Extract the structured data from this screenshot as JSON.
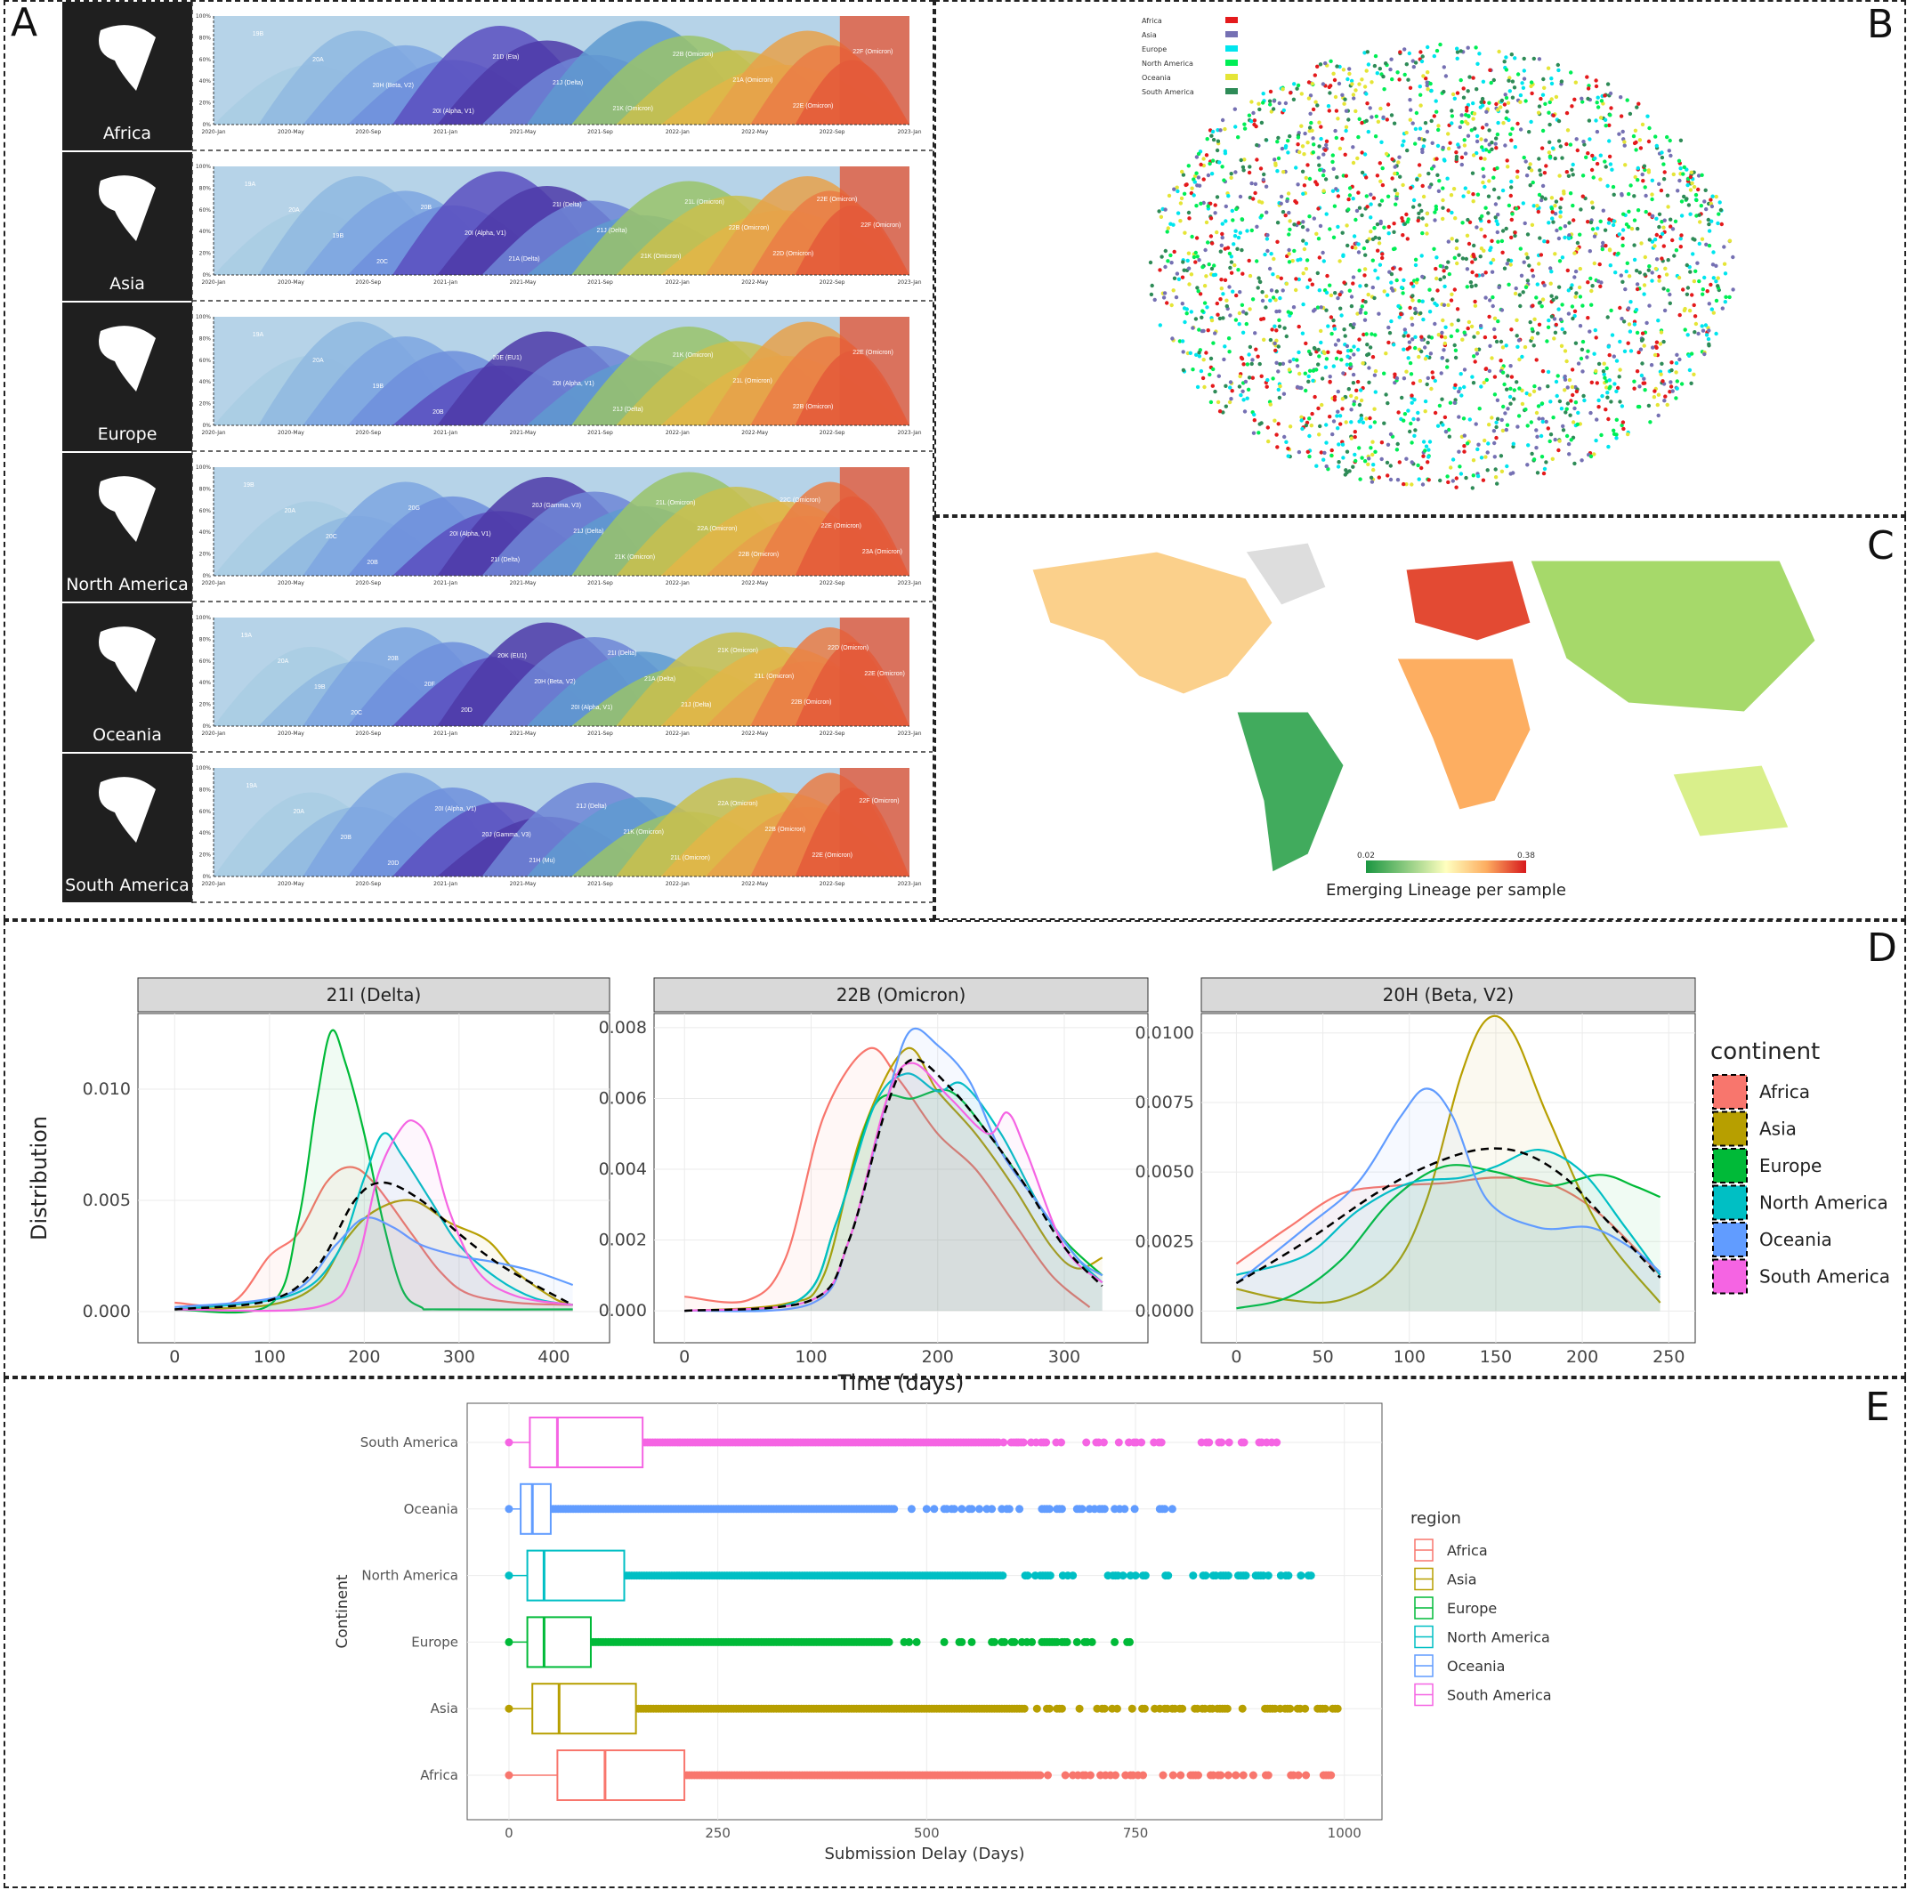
{
  "panels": {
    "A": "A",
    "B": "B",
    "C": "C",
    "D": "D",
    "E": "E"
  },
  "colors": {
    "Africa": "#f8766d",
    "Asia": "#b79f00",
    "Europe": "#00ba38",
    "North America": "#00bfc4",
    "Oceania": "#619cff",
    "South America": "#f564e3",
    "dark_panel": "#1f1f1f"
  },
  "panelA": {
    "continents": [
      {
        "name": "Africa",
        "icon": "africa-silhouette-icon",
        "labels": [
          "19B",
          "20A",
          "20H (Beta, V2)",
          "20I (Alpha, V1)",
          "21D (Eta)",
          "21J (Delta)",
          "21K (Omicron)",
          "22B (Omicron)",
          "21A (Omicron)",
          "22E (Omicron)",
          "22F (Omicron)"
        ]
      },
      {
        "name": "Asia",
        "icon": "asia-silhouette-icon",
        "labels": [
          "19A",
          "20A",
          "19B",
          "20C",
          "20B",
          "20I (Alpha, V1)",
          "21A (Delta)",
          "21I (Delta)",
          "21J (Delta)",
          "21K (Omicron)",
          "21L (Omicron)",
          "22B (Omicron)",
          "22D (Omicron)",
          "22E (Omicron)",
          "22F (Omicron)"
        ]
      },
      {
        "name": "Europe",
        "icon": "europe-silhouette-icon",
        "labels": [
          "19A",
          "20A",
          "19B",
          "20B",
          "20E (EU1)",
          "20I (Alpha, V1)",
          "21J (Delta)",
          "21K (Omicron)",
          "21L (Omicron)",
          "22B (Omicron)",
          "22E (Omicron)"
        ]
      },
      {
        "name": "North America",
        "icon": "north-america-silhouette-icon",
        "labels": [
          "19B",
          "20A",
          "20C",
          "20B",
          "20G",
          "20I (Alpha, V1)",
          "21I (Delta)",
          "20J (Gamma, V3)",
          "21J (Delta)",
          "21K (Omicron)",
          "21L (Omicron)",
          "22A (Omicron)",
          "22B (Omicron)",
          "22C (Omicron)",
          "22E (Omicron)",
          "23A (Omicron)"
        ]
      },
      {
        "name": "Oceania",
        "icon": "oceania-silhouette-icon",
        "labels": [
          "19A",
          "20A",
          "19B",
          "20C",
          "20B",
          "20F",
          "20D",
          "20K (EU1)",
          "20H (Beta, V2)",
          "20I (Alpha, V1)",
          "21I (Delta)",
          "21A (Delta)",
          "21J (Delta)",
          "21K (Omicron)",
          "21L (Omicron)",
          "22B (Omicron)",
          "22D (Omicron)",
          "22E (Omicron)"
        ]
      },
      {
        "name": "South America",
        "icon": "south-america-silhouette-icon",
        "labels": [
          "19A",
          "20A",
          "20B",
          "20D",
          "20I (Alpha, V1)",
          "20J (Gamma, V3)",
          "21H (Mu)",
          "21J (Delta)",
          "21K (Omicron)",
          "21L (Omicron)",
          "22A (Omicron)",
          "22B (Omicron)",
          "22E (Omicron)",
          "22F (Omicron)"
        ]
      }
    ],
    "xticks": [
      "2020-Jan",
      "2020-May",
      "2020-Sep",
      "2021-Jan",
      "2021-May",
      "2021-Sep",
      "2022-Jan",
      "2022-May",
      "2022-Sep",
      "2023-Jan"
    ],
    "yticks": [
      "0%",
      "20%",
      "40%",
      "60%",
      "80%",
      "100%"
    ]
  },
  "panelB": {
    "legend": [
      "Africa",
      "Asia",
      "Europe",
      "North America",
      "Oceania",
      "South America"
    ],
    "legend_colors": [
      "#e41a1c",
      "#7570b3",
      "#00e5ee",
      "#00ee55",
      "#e5e537",
      "#2e8b57"
    ]
  },
  "panelC": {
    "colorbar_min": "0.02",
    "colorbar_max": "0.38",
    "colorbar_title": "Emerging Lineage per sample"
  },
  "chart_data": [
    {
      "type": "area",
      "panel": "D",
      "title": "21I (Delta)",
      "ylabel": "Distribution",
      "xticks": [
        "0",
        "100",
        "200",
        "300",
        "400"
      ],
      "yticks": [
        "0.000",
        "0.005",
        "0.010"
      ],
      "xlim": [
        -20,
        440
      ],
      "ylim": [
        -0.0006,
        0.0134
      ],
      "series": [
        {
          "name": "Africa",
          "x": [
            0,
            60,
            100,
            130,
            160,
            185,
            210,
            250,
            280,
            310,
            360,
            420
          ],
          "y": [
            0.0004,
            0.0004,
            0.0025,
            0.0035,
            0.0058,
            0.0065,
            0.0058,
            0.0035,
            0.0018,
            0.0008,
            0.0004,
            0.0003
          ]
        },
        {
          "name": "Asia",
          "x": [
            0,
            100,
            150,
            180,
            210,
            250,
            290,
            330,
            360,
            400,
            420
          ],
          "y": [
            0.0001,
            0.0003,
            0.0012,
            0.0032,
            0.0045,
            0.005,
            0.004,
            0.0032,
            0.0018,
            0.0006,
            0.0003
          ]
        },
        {
          "name": "Europe",
          "x": [
            0,
            100,
            130,
            150,
            165,
            180,
            200,
            220,
            240,
            260,
            280,
            420
          ],
          "y": [
            0.0001,
            0.0003,
            0.004,
            0.0095,
            0.0126,
            0.0112,
            0.008,
            0.004,
            0.001,
            0.0002,
            0.0001,
            0.0001
          ]
        },
        {
          "name": "North America",
          "x": [
            0,
            120,
            170,
            200,
            220,
            240,
            270,
            300,
            340,
            380,
            420
          ],
          "y": [
            0.0001,
            0.0007,
            0.0025,
            0.006,
            0.008,
            0.007,
            0.005,
            0.003,
            0.0015,
            0.0006,
            0.0003
          ]
        },
        {
          "name": "Oceania",
          "x": [
            0,
            120,
            170,
            200,
            230,
            260,
            300,
            340,
            380,
            420
          ],
          "y": [
            0.0002,
            0.0008,
            0.003,
            0.0042,
            0.0038,
            0.003,
            0.0025,
            0.0022,
            0.0018,
            0.0012
          ]
        },
        {
          "name": "South America",
          "x": [
            0,
            150,
            190,
            215,
            240,
            255,
            270,
            290,
            320,
            360,
            420
          ],
          "y": [
            0.0001,
            0.0002,
            0.002,
            0.0062,
            0.0083,
            0.0085,
            0.0075,
            0.0045,
            0.0018,
            0.0007,
            0.0003
          ]
        },
        {
          "name": "overall",
          "x": [
            0,
            100,
            150,
            190,
            220,
            260,
            300,
            340,
            380,
            420
          ],
          "y": [
            0.0001,
            0.0005,
            0.002,
            0.005,
            0.0058,
            0.005,
            0.0035,
            0.0022,
            0.0012,
            0.0003
          ]
        }
      ]
    },
    {
      "type": "area",
      "panel": "D",
      "title": "22B (Omicron)",
      "xlabel": "Time (days)",
      "xticks": [
        "0",
        "100",
        "200",
        "300"
      ],
      "yticks": [
        "0.000",
        "0.002",
        "0.004",
        "0.006",
        "0.008"
      ],
      "xlim": [
        -10,
        352
      ],
      "ylim": [
        -0.0004,
        0.0084
      ],
      "series": [
        {
          "name": "Africa",
          "x": [
            0,
            50,
            80,
            110,
            145,
            170,
            200,
            230,
            260,
            290,
            320
          ],
          "y": [
            0.0004,
            0.0003,
            0.0015,
            0.0055,
            0.0074,
            0.0065,
            0.005,
            0.004,
            0.0025,
            0.001,
            0.0001
          ]
        },
        {
          "name": "Asia",
          "x": [
            0,
            80,
            110,
            140,
            175,
            200,
            230,
            260,
            290,
            310,
            330
          ],
          "y": [
            0.0,
            0.0002,
            0.001,
            0.005,
            0.0074,
            0.0062,
            0.005,
            0.0035,
            0.0018,
            0.0012,
            0.0015
          ]
        },
        {
          "name": "Europe",
          "x": [
            0,
            90,
            120,
            150,
            180,
            210,
            240,
            270,
            300,
            330
          ],
          "y": [
            0.0,
            0.0003,
            0.0025,
            0.0058,
            0.006,
            0.0062,
            0.005,
            0.0035,
            0.002,
            0.001
          ]
        },
        {
          "name": "North America",
          "x": [
            0,
            90,
            120,
            150,
            175,
            200,
            220,
            250,
            280,
            310,
            330
          ],
          "y": [
            0.0,
            0.0003,
            0.0025,
            0.0058,
            0.0067,
            0.0062,
            0.0064,
            0.005,
            0.003,
            0.0015,
            0.0008
          ]
        },
        {
          "name": "Oceania",
          "x": [
            0,
            100,
            130,
            160,
            178,
            200,
            225,
            250,
            280,
            310,
            330
          ],
          "y": [
            0.0,
            0.0002,
            0.002,
            0.006,
            0.0079,
            0.0075,
            0.0065,
            0.0045,
            0.003,
            0.0015,
            0.001
          ]
        },
        {
          "name": "South America",
          "x": [
            0,
            100,
            130,
            160,
            180,
            210,
            240,
            255,
            270,
            300,
            330
          ],
          "y": [
            0.0,
            0.0003,
            0.002,
            0.006,
            0.007,
            0.006,
            0.005,
            0.0056,
            0.0045,
            0.0018,
            0.0008
          ]
        },
        {
          "name": "overall",
          "x": [
            0,
            100,
            130,
            160,
            180,
            210,
            240,
            270,
            300,
            330
          ],
          "y": [
            0.0,
            0.0003,
            0.002,
            0.0058,
            0.0071,
            0.0063,
            0.005,
            0.0035,
            0.0018,
            0.0007
          ]
        }
      ]
    },
    {
      "type": "area",
      "panel": "D",
      "title": "20H (Beta, V2)",
      "xticks": [
        "0",
        "50",
        "100",
        "150",
        "200",
        "250"
      ],
      "yticks": [
        "0.0000",
        "0.0025",
        "0.0050",
        "0.0075",
        "0.0100"
      ],
      "xlim": [
        -10,
        255
      ],
      "ylim": [
        -0.0005,
        0.0107
      ],
      "series": [
        {
          "name": "Africa",
          "x": [
            0,
            30,
            60,
            90,
            120,
            150,
            180,
            210,
            245
          ],
          "y": [
            0.0017,
            0.003,
            0.0042,
            0.0045,
            0.0046,
            0.0048,
            0.0046,
            0.0035,
            0.0013
          ]
        },
        {
          "name": "Asia",
          "x": [
            0,
            30,
            60,
            90,
            110,
            130,
            145,
            160,
            180,
            210,
            245
          ],
          "y": [
            0.0008,
            0.0004,
            0.0004,
            0.0015,
            0.004,
            0.0085,
            0.0105,
            0.01,
            0.007,
            0.003,
            0.0003
          ]
        },
        {
          "name": "Europe",
          "x": [
            0,
            30,
            60,
            90,
            120,
            150,
            180,
            210,
            230,
            245
          ],
          "y": [
            0.0001,
            0.0005,
            0.0018,
            0.004,
            0.0052,
            0.005,
            0.0045,
            0.0049,
            0.0045,
            0.0041
          ]
        },
        {
          "name": "North America",
          "x": [
            0,
            40,
            70,
            100,
            130,
            150,
            175,
            200,
            225,
            245
          ],
          "y": [
            0.0013,
            0.002,
            0.0036,
            0.0046,
            0.0048,
            0.0052,
            0.0058,
            0.005,
            0.003,
            0.0013
          ]
        },
        {
          "name": "Oceania",
          "x": [
            0,
            40,
            70,
            95,
            110,
            125,
            145,
            175,
            205,
            230,
            245
          ],
          "y": [
            0.001,
            0.003,
            0.0046,
            0.007,
            0.008,
            0.007,
            0.004,
            0.003,
            0.003,
            0.0022,
            0.0014
          ]
        },
        {
          "name": "overall",
          "x": [
            0,
            40,
            80,
            110,
            140,
            165,
            190,
            215,
            245
          ],
          "y": [
            0.001,
            0.0025,
            0.0042,
            0.0052,
            0.0058,
            0.0057,
            0.0048,
            0.0032,
            0.0012
          ]
        }
      ]
    },
    {
      "type": "box",
      "panel": "E",
      "xlabel": "Submission Delay (Days)",
      "ylabel": "Continent",
      "legend_title": "region",
      "xticks": [
        "0",
        "250",
        "500",
        "750",
        "1000"
      ],
      "xlim": [
        -50,
        1045
      ],
      "categories": [
        "South America",
        "Oceania",
        "North America",
        "Europe",
        "Asia",
        "Africa"
      ],
      "boxes": [
        {
          "name": "South America",
          "whisker_low": 0,
          "q1": 25,
          "median": 58,
          "q3": 160,
          "outlier_max": 925
        },
        {
          "name": "Oceania",
          "whisker_low": 0,
          "q1": 14,
          "median": 28,
          "q3": 50,
          "outlier_max": 795
        },
        {
          "name": "North America",
          "whisker_low": 0,
          "q1": 22,
          "median": 42,
          "q3": 138,
          "outlier_max": 965
        },
        {
          "name": "Europe",
          "whisker_low": 0,
          "q1": 22,
          "median": 42,
          "q3": 98,
          "outlier_max": 745
        },
        {
          "name": "Asia",
          "whisker_low": 0,
          "q1": 28,
          "median": 60,
          "q3": 152,
          "outlier_max": 995
        },
        {
          "name": "Africa",
          "whisker_low": 0,
          "q1": 58,
          "median": 115,
          "q3": 210,
          "outlier_max": 985
        }
      ],
      "legend": [
        "Africa",
        "Asia",
        "Europe",
        "North America",
        "Oceania",
        "South America"
      ]
    }
  ],
  "panelD_legend": {
    "title": "continent",
    "items": [
      "Africa",
      "Asia",
      "Europe",
      "North America",
      "Oceania",
      "South America"
    ]
  }
}
